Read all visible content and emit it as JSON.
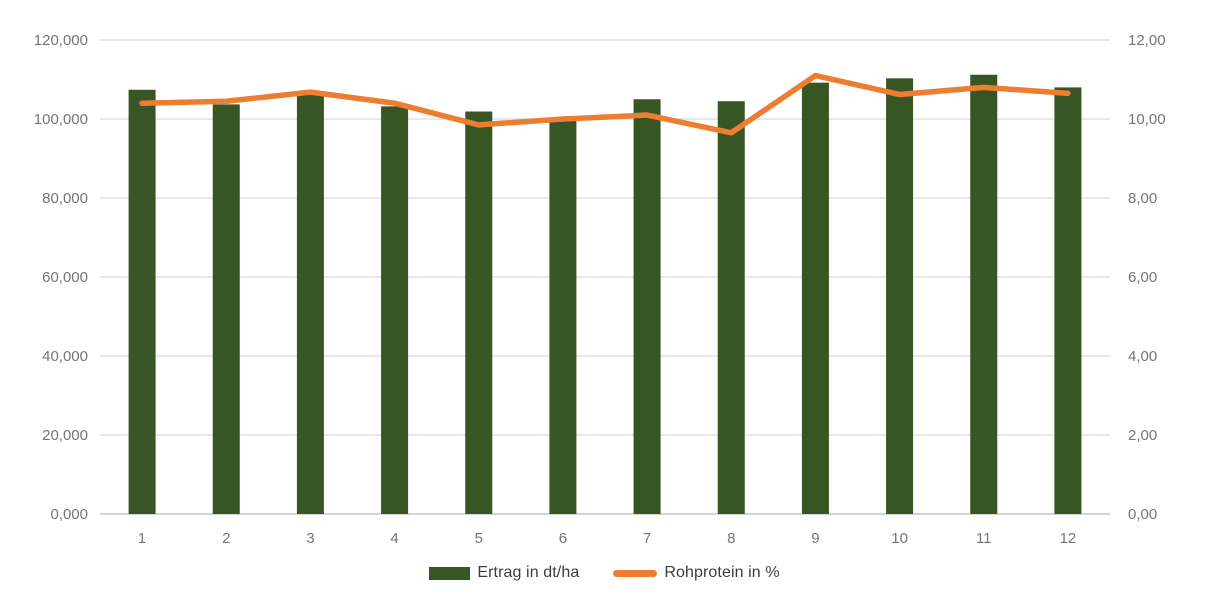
{
  "chart_data": {
    "type": "bar",
    "subtype": "combo-bar-line",
    "title": "",
    "xlabel": "",
    "ylabel_left": "",
    "ylabel_right": "",
    "grid": true,
    "legend_position": "bottom",
    "categories": [
      "1",
      "2",
      "3",
      "4",
      "5",
      "6",
      "7",
      "8",
      "9",
      "10",
      "11",
      "12"
    ],
    "series": [
      {
        "name": "Ertrag in dt/ha",
        "type": "bar",
        "axis": "left",
        "color": "#375623",
        "values": [
          107.4,
          103.7,
          106.5,
          103.2,
          101.9,
          99.7,
          105.0,
          104.5,
          109.2,
          110.3,
          111.2,
          108.0
        ]
      },
      {
        "name": "Rohprotein in %",
        "type": "line",
        "axis": "right",
        "color": "#ED7D31",
        "values": [
          10.4,
          10.45,
          10.68,
          10.4,
          9.85,
          10.0,
          10.1,
          9.65,
          11.1,
          10.62,
          10.8,
          10.65
        ]
      }
    ],
    "left_axis": {
      "min": 0,
      "max": 120,
      "step": 20,
      "tick_labels": [
        "0,000",
        "20,000",
        "40,000",
        "60,000",
        "80,000",
        "100,000",
        "120,000"
      ]
    },
    "right_axis": {
      "min": 0,
      "max": 12,
      "step": 2,
      "tick_labels": [
        "0,00",
        "2,00",
        "4,00",
        "6,00",
        "8,00",
        "10,00",
        "12,00"
      ]
    }
  },
  "legend": {
    "items": [
      {
        "label": "Ertrag in dt/ha",
        "color": "#375623",
        "kind": "bar"
      },
      {
        "label": "Rohprotein in %",
        "color": "#ED7D31",
        "kind": "line"
      }
    ]
  },
  "style": {
    "gridline_color": "#D9D9D9",
    "baseline_color": "#C6C6C6",
    "tick_text_color": "#757575",
    "legend_text_color": "#3d3d3d",
    "background": "#ffffff"
  }
}
